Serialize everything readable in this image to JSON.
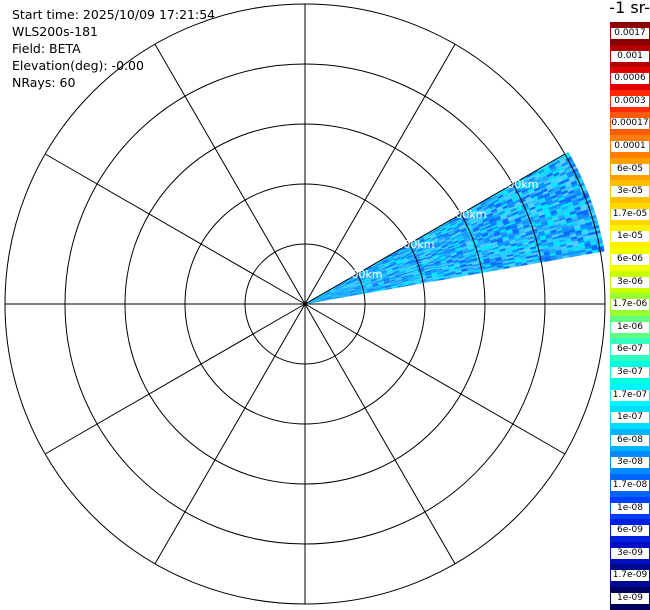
{
  "info": {
    "start_time": "Start time: 2025/10/09 17:21:54",
    "instrument": "WLS200s-181",
    "field": "Field: BETA",
    "elevation": "Elevation(deg): -0.00",
    "nrays": "NRays: 60"
  },
  "colorbar": {
    "title": "-1 sr-",
    "entries": [
      {
        "label": "0.0017",
        "color": "#8b0000"
      },
      {
        "label": "0.001",
        "color": "#b50000"
      },
      {
        "label": "0.0006",
        "color": "#e00000"
      },
      {
        "label": "0.0003",
        "color": "#ff2a00"
      },
      {
        "label": "0.00017",
        "color": "#ff5a00"
      },
      {
        "label": "0.0001",
        "color": "#ff7f00"
      },
      {
        "label": "6e-05",
        "color": "#ffa000"
      },
      {
        "label": "3e-05",
        "color": "#ffbf00"
      },
      {
        "label": "1.7e-05",
        "color": "#ffd700"
      },
      {
        "label": "1e-05",
        "color": "#ffef00"
      },
      {
        "label": "6e-06",
        "color": "#f0ff00"
      },
      {
        "label": "3e-06",
        "color": "#c8ff00"
      },
      {
        "label": "1.7e-06",
        "color": "#9aff30"
      },
      {
        "label": "1e-06",
        "color": "#60ff80"
      },
      {
        "label": "6e-07",
        "color": "#30ffc0"
      },
      {
        "label": "3e-07",
        "color": "#00ffe0"
      },
      {
        "label": "1.7e-07",
        "color": "#00f5ff"
      },
      {
        "label": "1e-07",
        "color": "#00dcff"
      },
      {
        "label": "6e-08",
        "color": "#00b4ff"
      },
      {
        "label": "3e-08",
        "color": "#008cff"
      },
      {
        "label": "1.7e-08",
        "color": "#0064ff"
      },
      {
        "label": "1e-08",
        "color": "#0040ff"
      },
      {
        "label": "6e-09",
        "color": "#0020e0"
      },
      {
        "label": "3e-09",
        "color": "#0010c0"
      },
      {
        "label": "1.7e-09",
        "color": "#000a90"
      },
      {
        "label": "1e-09",
        "color": "#000060"
      }
    ]
  },
  "polar": {
    "range_labels": [
      "1.00km",
      "2.00km",
      "3.00km",
      "4.00km"
    ],
    "sector_azimuth_deg": [
      60,
      80
    ],
    "ring_count": 5,
    "spoke_step_deg": 30,
    "sector_colors": [
      "#0f8fff",
      "#1fa8ff",
      "#2bc8ff",
      "#0a6cff",
      "#00e6ff",
      "#4fd0ff"
    ]
  }
}
